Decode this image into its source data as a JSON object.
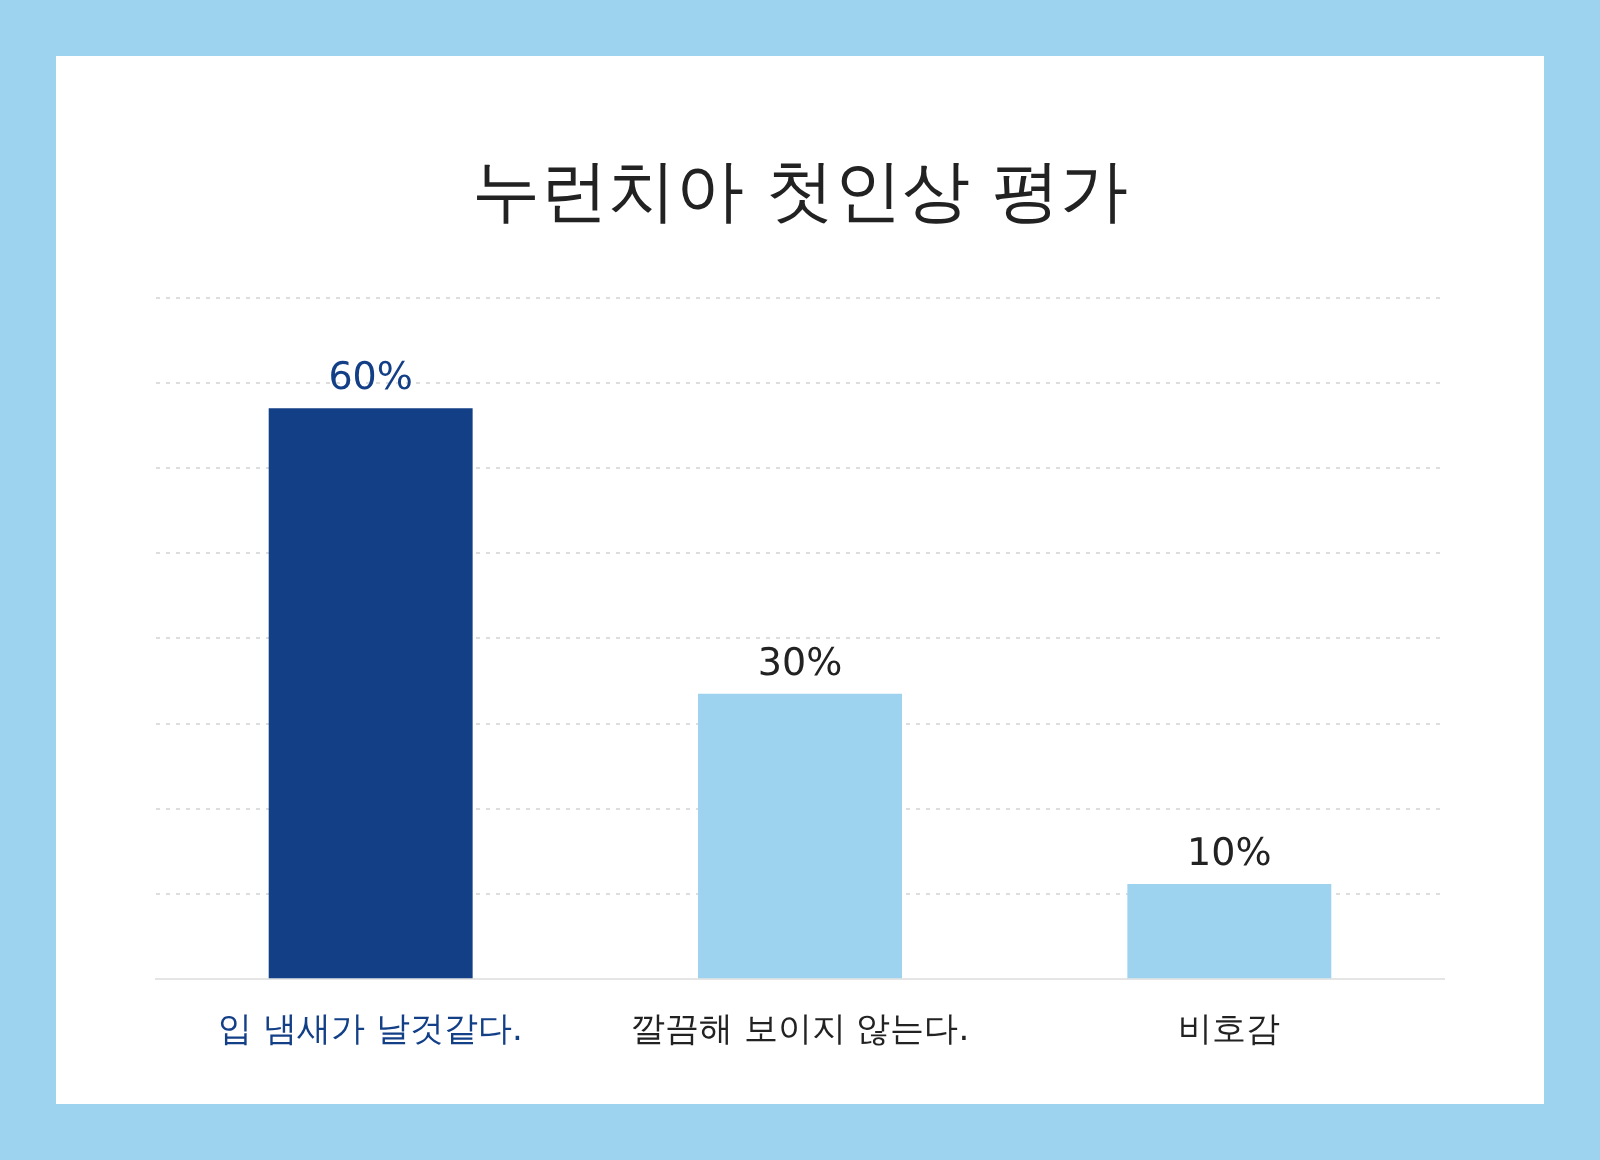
{
  "chart_data": {
    "type": "bar",
    "title": "누런치아 첫인상 평가",
    "categories": [
      "입 냄새가 날것같다.",
      "깔끔해 보이지 않는다.",
      "비호감"
    ],
    "values": [
      60,
      30,
      10
    ],
    "colors": [
      "#133f87",
      "#9dd3ee",
      "#9dd3ee"
    ],
    "value_labels": [
      "60%",
      "30%",
      "10%"
    ],
    "grid": "y",
    "legend": false
  }
}
